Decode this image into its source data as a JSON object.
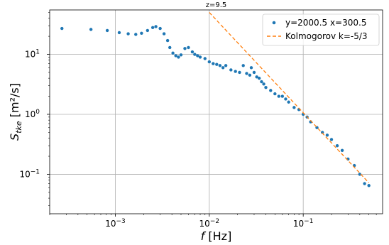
{
  "chart_data": {
    "type": "scatter",
    "title": "z=9.5",
    "xlabel": "f [Hz]",
    "ylabel": "S_tke [m²/s]",
    "xscale": "log",
    "yscale": "log",
    "xlim": [
      0.0002,
      0.7
    ],
    "ylim": [
      0.022,
      55
    ],
    "xticks": [
      {
        "value": 0.001,
        "base": "10",
        "exp": "−3"
      },
      {
        "value": 0.01,
        "base": "10",
        "exp": "−2"
      },
      {
        "value": 0.1,
        "base": "10",
        "exp": "−1"
      }
    ],
    "yticks": [
      {
        "value": 0.1,
        "base": "10",
        "exp": "−1"
      },
      {
        "value": 1,
        "base": "10",
        "exp": "0"
      },
      {
        "value": 10,
        "base": "10",
        "exp": "1"
      }
    ],
    "grid": true,
    "legend_position": "top-right",
    "colors": {
      "series": "#1f77b4",
      "reference": "#ff7f0e",
      "grid": "#b0b0b0"
    },
    "series": [
      {
        "name": "y=2000.5 x=300.5",
        "style": "points",
        "x": [
          0.00027,
          0.00055,
          0.00082,
          0.0011,
          0.00137,
          0.00165,
          0.0019,
          0.0022,
          0.0025,
          0.0027,
          0.003,
          0.0033,
          0.0036,
          0.0038,
          0.0041,
          0.0044,
          0.0047,
          0.005,
          0.0055,
          0.006,
          0.0066,
          0.007,
          0.0075,
          0.008,
          0.009,
          0.01,
          0.011,
          0.012,
          0.013,
          0.014,
          0.015,
          0.017,
          0.019,
          0.021,
          0.023,
          0.025,
          0.027,
          0.028,
          0.03,
          0.032,
          0.034,
          0.036,
          0.038,
          0.04,
          0.045,
          0.05,
          0.055,
          0.06,
          0.065,
          0.07,
          0.08,
          0.09,
          0.1,
          0.11,
          0.12,
          0.14,
          0.16,
          0.18,
          0.2,
          0.23,
          0.26,
          0.3,
          0.35,
          0.4,
          0.45,
          0.5
        ],
        "y": [
          27,
          26,
          25,
          23,
          22,
          21.5,
          22.5,
          25,
          28,
          29,
          27,
          22,
          17,
          13,
          10.5,
          9.5,
          9,
          9.8,
          12.5,
          13,
          11,
          10,
          9.5,
          9,
          8.5,
          7.5,
          7.0,
          6.8,
          6.5,
          6.0,
          6.5,
          5.5,
          5.2,
          5.0,
          6.5,
          4.8,
          4.5,
          6.0,
          5.0,
          4.2,
          4.0,
          3.5,
          3.2,
          2.8,
          2.5,
          2.2,
          2.0,
          2.0,
          1.8,
          1.6,
          1.3,
          1.2,
          1.0,
          0.9,
          0.75,
          0.6,
          0.5,
          0.45,
          0.38,
          0.3,
          0.25,
          0.18,
          0.14,
          0.1,
          0.07,
          0.065
        ]
      },
      {
        "name": "Kolmogorov k=-5/3",
        "style": "dashed-line",
        "x": [
          0.01,
          0.5
        ],
        "y": [
          50,
          0.072
        ]
      }
    ]
  }
}
